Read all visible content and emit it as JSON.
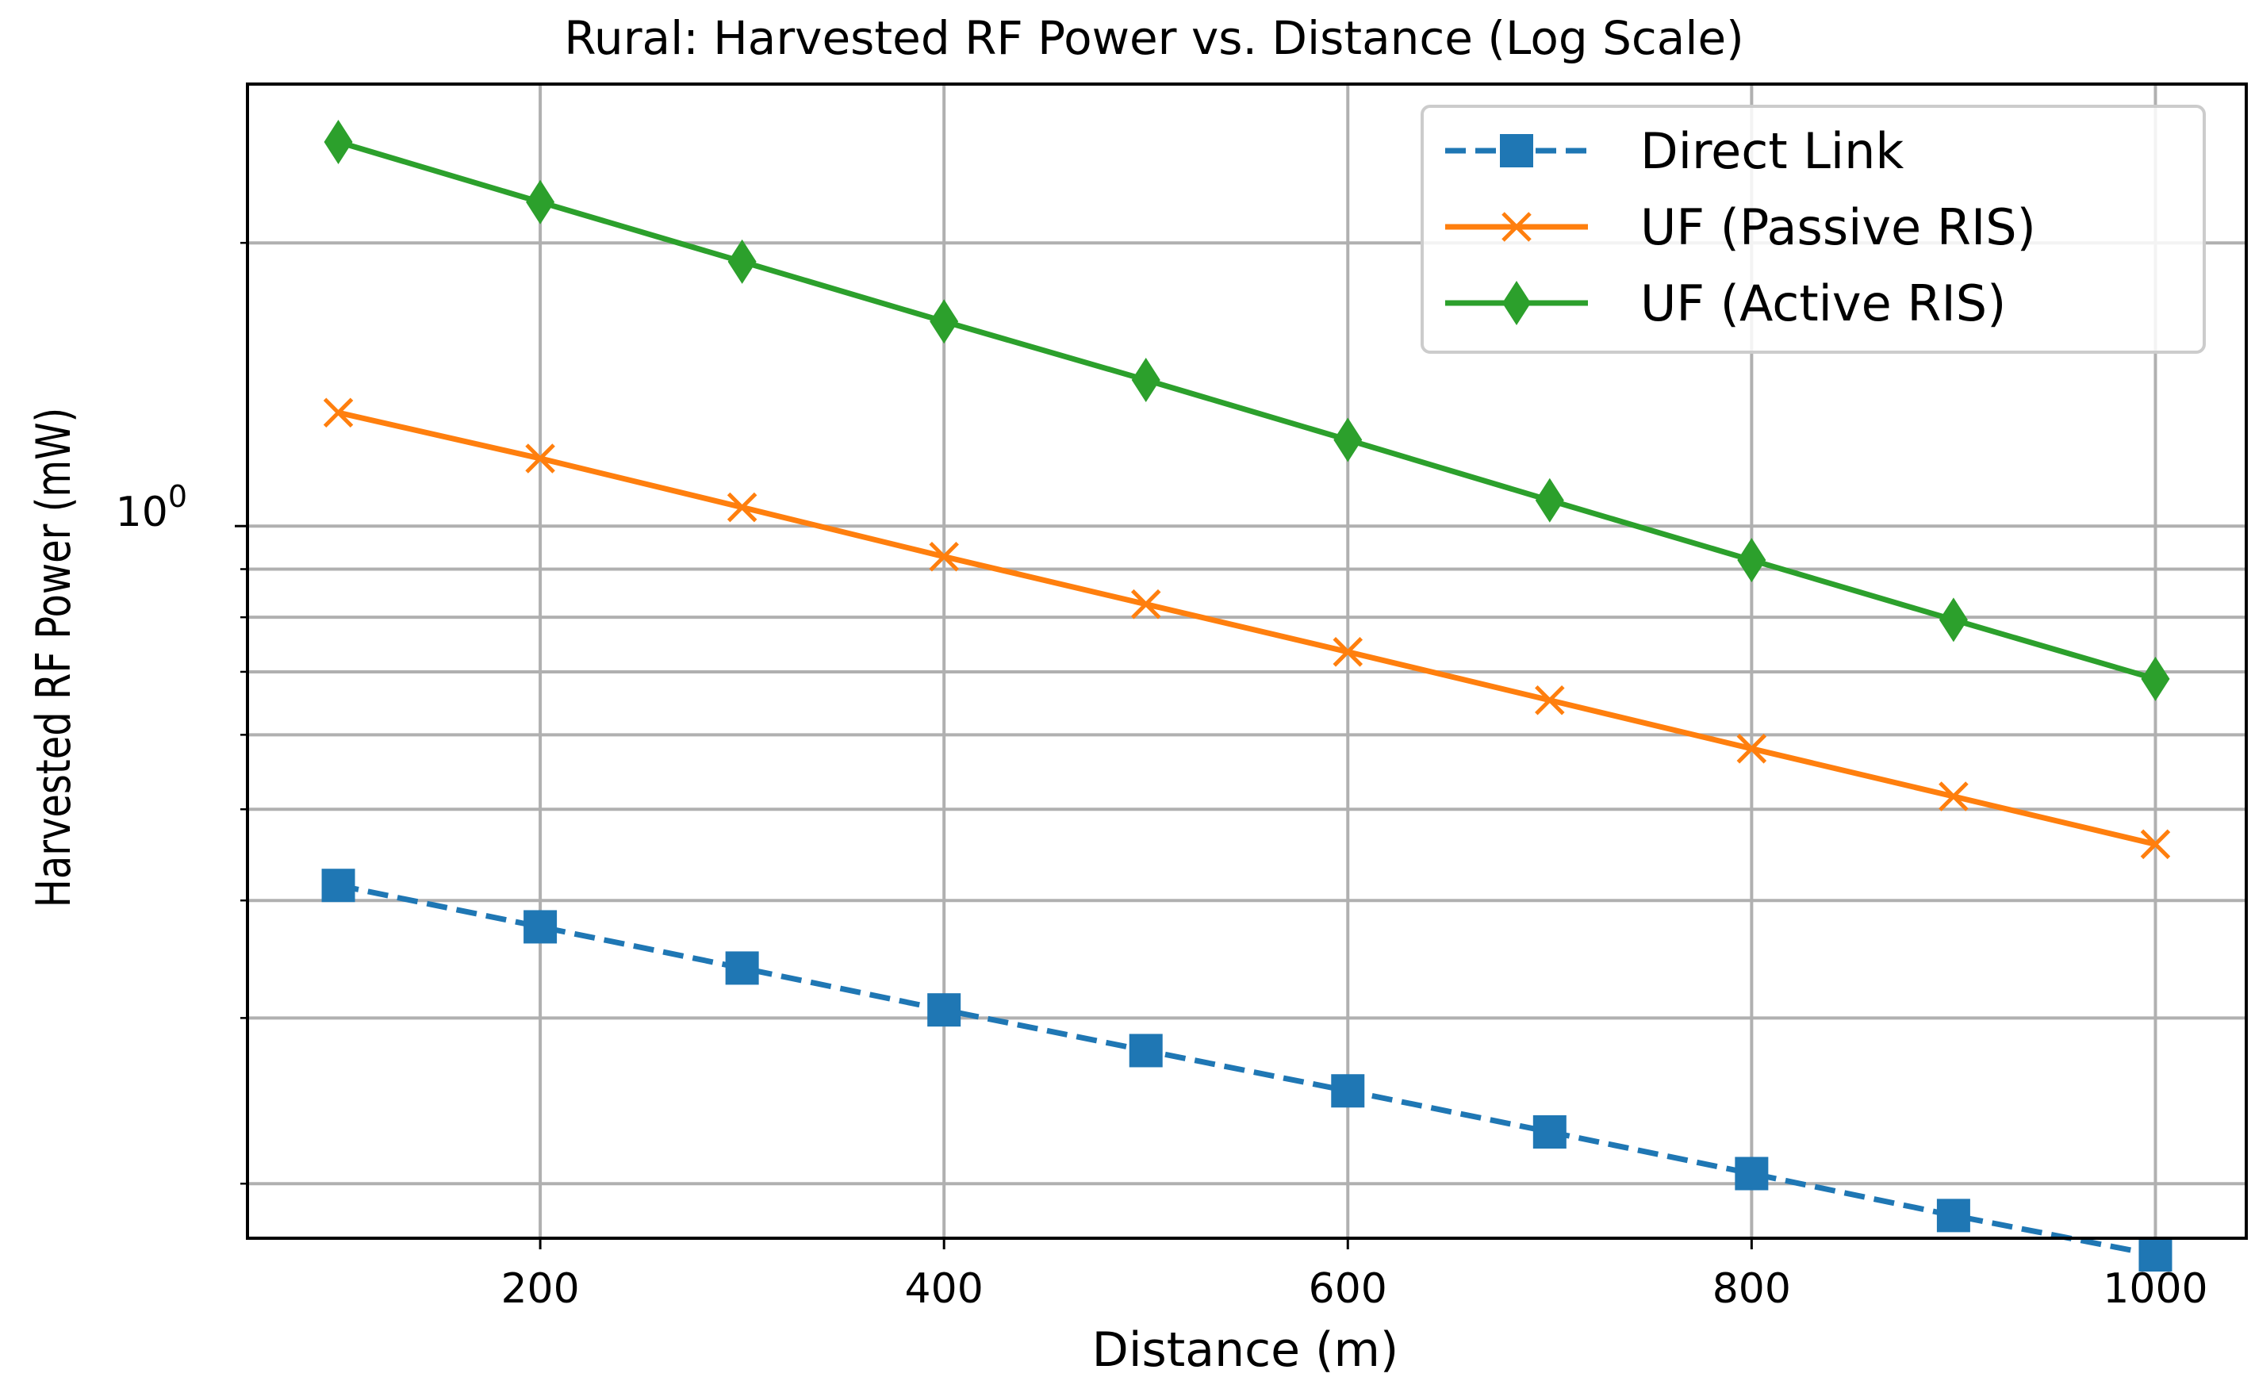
{
  "chart_data": {
    "type": "line",
    "title": "Rural: Harvested RF Power vs. Distance (Log Scale)",
    "xlabel": "Distance (m)",
    "ylabel": "Harvested RF Power (mW)",
    "yscale": "log",
    "xlim": [
      55,
      1045
    ],
    "ylim": [
      0.175,
      2.95
    ],
    "x": [
      100,
      200,
      300,
      400,
      500,
      600,
      700,
      800,
      900,
      1000
    ],
    "xticks": [
      200,
      400,
      600,
      800,
      1000
    ],
    "xtick_labels": [
      "200",
      "400",
      "600",
      "800",
      "1000"
    ],
    "ytick_major": [
      1.0
    ],
    "ytick_major_base": "10",
    "ytick_major_exp": "0",
    "ytick_minor": [
      0.2,
      0.3,
      0.4,
      0.5,
      0.6,
      0.7,
      0.8,
      0.9,
      2.0
    ],
    "grid": true,
    "legend_position": "top-right",
    "series": [
      {
        "name": "Direct Link",
        "color": "#1f77b4",
        "linestyle": "dashed",
        "marker": "square",
        "values": [
          0.415,
          0.375,
          0.339,
          0.306,
          0.277,
          0.251,
          0.227,
          0.205,
          0.185,
          0.168
        ]
      },
      {
        "name": "UF (Passive RIS)",
        "color": "#ff7f0e",
        "linestyle": "solid",
        "marker": "x",
        "values": [
          1.32,
          1.18,
          1.047,
          0.928,
          0.826,
          0.735,
          0.653,
          0.58,
          0.516,
          0.459
        ]
      },
      {
        "name": "UF (Active RIS)",
        "color": "#2ca02c",
        "linestyle": "solid",
        "marker": "diamond",
        "values": [
          2.56,
          2.21,
          1.91,
          1.65,
          1.43,
          1.235,
          1.065,
          0.92,
          0.795,
          0.688
        ]
      }
    ]
  }
}
